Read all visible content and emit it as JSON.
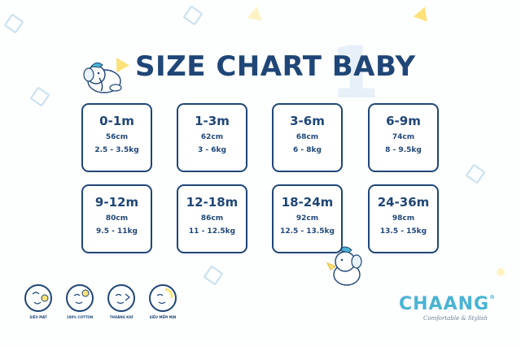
{
  "title": "SIZE CHART BABY",
  "sizes": [
    {
      "age": "0-1m",
      "height": "56cm",
      "weight": "2.5 - 3.5kg"
    },
    {
      "age": "1-3m",
      "height": "62cm",
      "weight": "3 - 6kg"
    },
    {
      "age": "3-6m",
      "height": "68cm",
      "weight": "6 - 8kg"
    },
    {
      "age": "6-9m",
      "height": "74cm",
      "weight": "8 - 9.5kg"
    },
    {
      "age": "9-12m",
      "height": "80cm",
      "weight": "9.5 - 11kg"
    },
    {
      "age": "12-18m",
      "height": "86cm",
      "weight": "11 - 12.5kg"
    },
    {
      "age": "18-24m",
      "height": "92cm",
      "weight": "12.5 - 13.5kg"
    },
    {
      "age": "24-36m",
      "height": "98cm",
      "weight": "13.5 - 15kg"
    }
  ],
  "features": [
    {
      "label": "SIÊU MÁT",
      "icon": "cool-face-icon"
    },
    {
      "label": "100% COTTON",
      "icon": "cotton-face-icon"
    },
    {
      "label": "THOÁNG KHÍ",
      "icon": "breathable-face-icon"
    },
    {
      "label": "SIÊU MỀM MỊN",
      "icon": "soft-face-icon"
    }
  ],
  "brand": {
    "name": "CHAANG",
    "registered": "®",
    "tagline": "Comfortable & Stylish"
  },
  "decor_digit": "1",
  "colors": {
    "primary": "#1f4677",
    "accent": "#4ab3d4",
    "yellow": "#fde27a",
    "background": "#fdfefe"
  }
}
